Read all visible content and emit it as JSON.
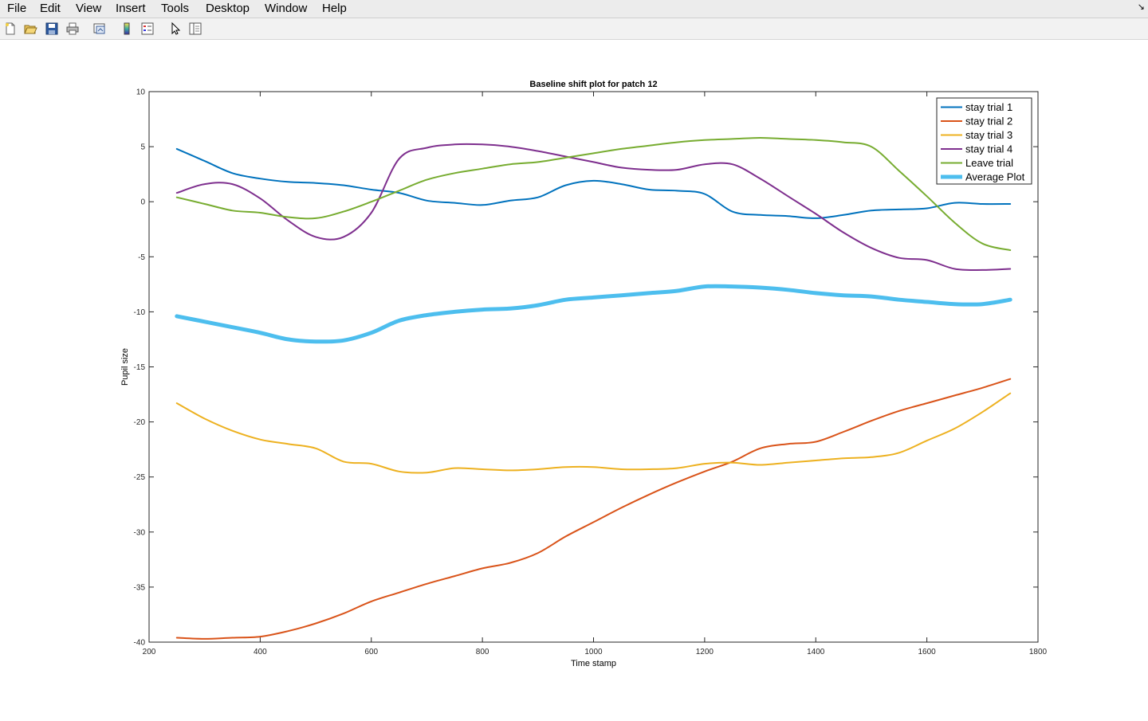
{
  "menu": {
    "items": [
      "File",
      "Edit",
      "View",
      "Insert",
      "Tools",
      "Desktop",
      "Window",
      "Help"
    ]
  },
  "toolbar": {
    "icons": [
      "new-figure-icon",
      "open-file-icon",
      "save-icon",
      "print-icon",
      "export-icon",
      "colorbar-icon",
      "legend-icon",
      "pointer-icon",
      "property-editor-icon"
    ]
  },
  "chart_data": {
    "type": "line",
    "title": "Baseline shift plot for patch 12",
    "xlabel": "Time stamp",
    "ylabel": "Pupil size",
    "xlim": [
      200,
      1800
    ],
    "ylim": [
      -40,
      10
    ],
    "xticks": [
      200,
      400,
      600,
      800,
      1000,
      1200,
      1400,
      1600,
      1800
    ],
    "yticks": [
      -40,
      -35,
      -30,
      -25,
      -20,
      -15,
      -10,
      -5,
      0,
      5,
      10
    ],
    "grid": false,
    "legend_position": "top-right",
    "x": [
      250,
      300,
      350,
      400,
      450,
      500,
      550,
      600,
      650,
      700,
      750,
      800,
      850,
      900,
      950,
      1000,
      1050,
      1100,
      1150,
      1200,
      1250,
      1300,
      1350,
      1400,
      1450,
      1500,
      1550,
      1600,
      1650,
      1700,
      1750
    ],
    "series": [
      {
        "name": "stay trial 1",
        "color": "#0072BD",
        "width": 2,
        "values": [
          4.8,
          3.7,
          2.6,
          2.1,
          1.8,
          1.7,
          1.5,
          1.1,
          0.8,
          0.1,
          -0.1,
          -0.3,
          0.1,
          0.4,
          1.5,
          1.9,
          1.6,
          1.1,
          1.0,
          0.7,
          -0.9,
          -1.2,
          -1.3,
          -1.5,
          -1.2,
          -0.8,
          -0.7,
          -0.6,
          -0.1,
          -0.2,
          -0.2
        ]
      },
      {
        "name": "stay trial 2",
        "color": "#D95319",
        "width": 2,
        "values": [
          -39.6,
          -39.7,
          -39.6,
          -39.5,
          -39.0,
          -38.3,
          -37.4,
          -36.3,
          -35.5,
          -34.7,
          -34.0,
          -33.3,
          -32.8,
          -31.9,
          -30.4,
          -29.1,
          -27.8,
          -26.6,
          -25.5,
          -24.5,
          -23.6,
          -22.4,
          -22.0,
          -21.8,
          -20.9,
          -19.9,
          -19.0,
          -18.3,
          -17.6,
          -16.9,
          -16.1
        ]
      },
      {
        "name": "stay trial 3",
        "color": "#EDB120",
        "width": 2,
        "values": [
          -18.3,
          -19.7,
          -20.8,
          -21.6,
          -22.0,
          -22.4,
          -23.6,
          -23.8,
          -24.5,
          -24.6,
          -24.2,
          -24.3,
          -24.4,
          -24.3,
          -24.1,
          -24.1,
          -24.3,
          -24.3,
          -24.2,
          -23.8,
          -23.7,
          -23.9,
          -23.7,
          -23.5,
          -23.3,
          -23.2,
          -22.8,
          -21.7,
          -20.6,
          -19.1,
          -17.4
        ]
      },
      {
        "name": "stay trial 4",
        "color": "#7E2F8E",
        "width": 2,
        "values": [
          0.8,
          1.6,
          1.6,
          0.3,
          -1.7,
          -3.2,
          -3.2,
          -1.0,
          3.9,
          4.9,
          5.2,
          5.2,
          5.0,
          4.6,
          4.1,
          3.6,
          3.1,
          2.9,
          2.9,
          3.4,
          3.4,
          2.1,
          0.5,
          -1.1,
          -2.8,
          -4.2,
          -5.1,
          -5.3,
          -6.1,
          -6.2,
          -6.1
        ]
      },
      {
        "name": "Leave trial",
        "color": "#77AC30",
        "width": 2,
        "values": [
          0.4,
          -0.2,
          -0.8,
          -1.0,
          -1.4,
          -1.5,
          -0.9,
          0.0,
          1.0,
          2.0,
          2.6,
          3.0,
          3.4,
          3.6,
          4.0,
          4.4,
          4.8,
          5.1,
          5.4,
          5.6,
          5.7,
          5.8,
          5.7,
          5.6,
          5.4,
          5.0,
          2.8,
          0.5,
          -1.9,
          -3.8,
          -4.4
        ]
      },
      {
        "name": "Average Plot",
        "color": "#4DBEEE",
        "width": 5,
        "values": [
          -10.4,
          -10.9,
          -11.4,
          -11.9,
          -12.5,
          -12.7,
          -12.6,
          -11.9,
          -10.8,
          -10.3,
          -10.0,
          -9.8,
          -9.7,
          -9.4,
          -8.9,
          -8.7,
          -8.5,
          -8.3,
          -8.1,
          -7.7,
          -7.7,
          -7.8,
          -8.0,
          -8.3,
          -8.5,
          -8.6,
          -8.9,
          -9.1,
          -9.3,
          -9.3,
          -8.9
        ]
      }
    ]
  }
}
